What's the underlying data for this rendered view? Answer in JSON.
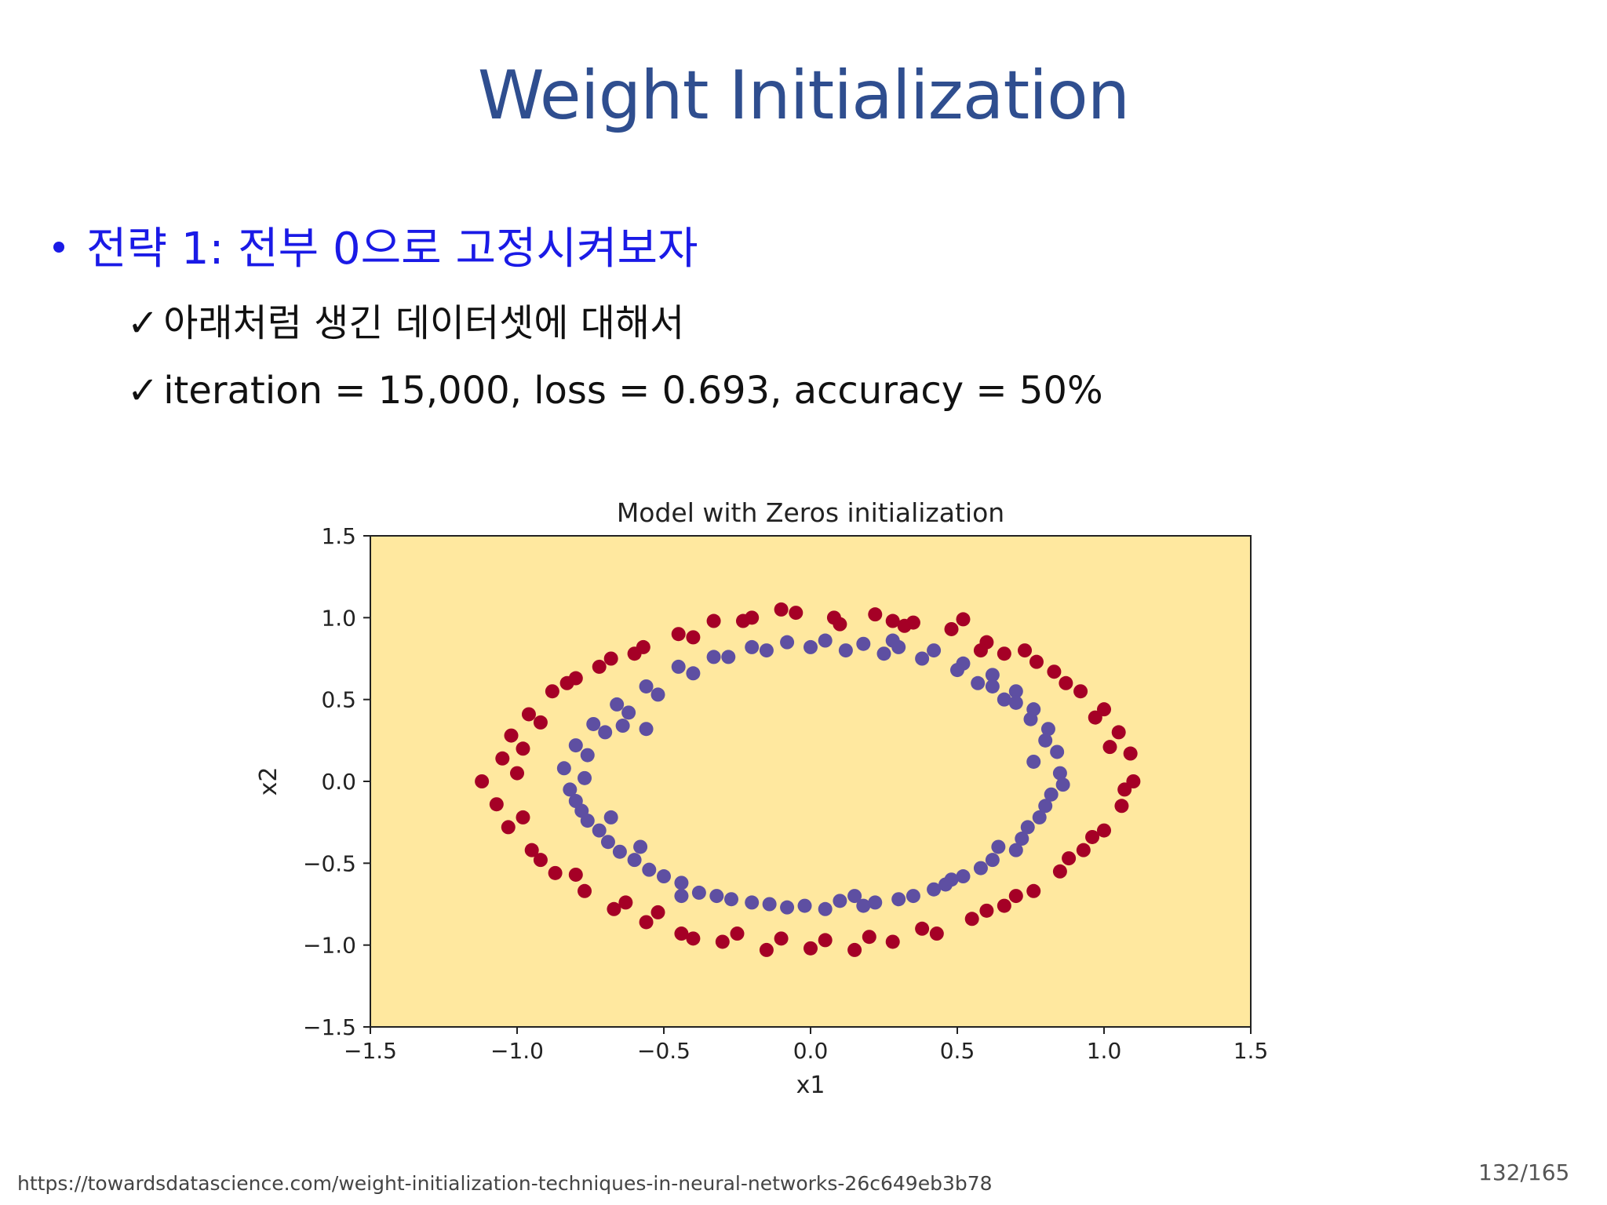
{
  "slide": {
    "title": "Weight Initialization",
    "bullet": "전략 1: 전부 0으로 고정시켜보자",
    "checks": [
      {
        "mark": "✓",
        "text": "아래처럼 생긴 데이터셋에 대해서"
      },
      {
        "mark": "✓",
        "text": "iteration = 15,000, loss = 0.693, accuracy = 50%"
      }
    ],
    "footer_url": "https://towardsdatascience.com/weight-initialization-techniques-in-neural-networks-26c649eb3b78",
    "page_number": "132/165"
  },
  "chart_data": {
    "type": "scatter",
    "title": "Model with Zeros initialization",
    "xlabel": "x1",
    "ylabel": "x2",
    "xlim": [
      -1.5,
      1.5
    ],
    "ylim": [
      -1.5,
      1.5
    ],
    "xticks": [
      -1.5,
      -1.0,
      -0.5,
      0.0,
      0.5,
      1.0,
      1.5
    ],
    "yticks": [
      -1.5,
      -1.0,
      -0.5,
      0.0,
      0.5,
      1.0,
      1.5
    ],
    "xtick_labels": [
      "−1.5",
      "−1.0",
      "−0.5",
      "0.0",
      "0.5",
      "1.0",
      "1.5"
    ],
    "ytick_labels": [
      "−1.5",
      "−1.0",
      "−0.5",
      "0.0",
      "0.5",
      "1.0",
      "1.5"
    ],
    "grid": false,
    "background_color": "#ffe89f",
    "colors": {
      "outer": "#a50026",
      "inner": "#5e4fa2"
    },
    "series": [
      {
        "color": "#a50026",
        "points": [
          [
            -0.05,
            1.03
          ],
          [
            0.08,
            1.0
          ],
          [
            0.22,
            1.02
          ],
          [
            0.35,
            0.97
          ],
          [
            0.52,
            0.99
          ],
          [
            0.6,
            0.85
          ],
          [
            0.73,
            0.8
          ],
          [
            0.83,
            0.67
          ],
          [
            0.92,
            0.55
          ],
          [
            1.0,
            0.44
          ],
          [
            1.05,
            0.3
          ],
          [
            1.09,
            0.17
          ],
          [
            1.1,
            0.0
          ],
          [
            1.06,
            -0.15
          ],
          [
            1.0,
            -0.3
          ],
          [
            0.93,
            -0.42
          ],
          [
            0.85,
            -0.55
          ],
          [
            0.76,
            -0.67
          ],
          [
            0.66,
            -0.76
          ],
          [
            0.55,
            -0.84
          ],
          [
            0.43,
            -0.93
          ],
          [
            0.28,
            -0.98
          ],
          [
            0.15,
            -1.03
          ],
          [
            0.0,
            -1.02
          ],
          [
            -0.15,
            -1.03
          ],
          [
            -0.3,
            -0.98
          ],
          [
            -0.44,
            -0.93
          ],
          [
            -0.56,
            -0.86
          ],
          [
            -0.67,
            -0.78
          ],
          [
            -0.77,
            -0.67
          ],
          [
            -0.87,
            -0.56
          ],
          [
            -0.95,
            -0.42
          ],
          [
            -1.03,
            -0.28
          ],
          [
            -1.07,
            -0.14
          ],
          [
            -1.12,
            0.0
          ],
          [
            -1.05,
            0.14
          ],
          [
            -1.02,
            0.28
          ],
          [
            -0.96,
            0.41
          ],
          [
            -0.88,
            0.55
          ],
          [
            -0.8,
            0.63
          ],
          [
            -0.68,
            0.75
          ],
          [
            -0.57,
            0.82
          ],
          [
            -0.45,
            0.9
          ],
          [
            -0.33,
            0.98
          ],
          [
            -0.2,
            1.0
          ],
          [
            -0.1,
            1.05
          ],
          [
            0.1,
            0.96
          ],
          [
            0.28,
            0.98
          ],
          [
            0.48,
            0.93
          ],
          [
            0.66,
            0.78
          ],
          [
            0.77,
            0.73
          ],
          [
            0.87,
            0.6
          ],
          [
            0.97,
            0.39
          ],
          [
            1.02,
            0.21
          ],
          [
            1.07,
            -0.05
          ],
          [
            0.96,
            -0.34
          ],
          [
            0.88,
            -0.47
          ],
          [
            0.7,
            -0.7
          ],
          [
            0.6,
            -0.79
          ],
          [
            0.38,
            -0.9
          ],
          [
            0.2,
            -0.95
          ],
          [
            0.05,
            -0.97
          ],
          [
            -0.1,
            -0.96
          ],
          [
            -0.25,
            -0.93
          ],
          [
            -0.4,
            -0.96
          ],
          [
            -0.52,
            -0.8
          ],
          [
            -0.63,
            -0.74
          ],
          [
            -0.8,
            -0.57
          ],
          [
            -0.92,
            -0.48
          ],
          [
            -0.98,
            -0.22
          ],
          [
            -1.0,
            0.05
          ],
          [
            -0.98,
            0.2
          ],
          [
            -0.92,
            0.36
          ],
          [
            -0.83,
            0.6
          ],
          [
            -0.72,
            0.7
          ],
          [
            -0.6,
            0.78
          ],
          [
            -0.4,
            0.88
          ],
          [
            -0.23,
            0.98
          ],
          [
            0.32,
            0.95
          ],
          [
            0.58,
            0.8
          ]
        ]
      },
      {
        "color": "#5e4fa2",
        "points": [
          [
            -0.08,
            0.85
          ],
          [
            0.05,
            0.86
          ],
          [
            0.18,
            0.84
          ],
          [
            0.3,
            0.82
          ],
          [
            0.42,
            0.8
          ],
          [
            0.52,
            0.72
          ],
          [
            0.62,
            0.65
          ],
          [
            0.7,
            0.55
          ],
          [
            0.76,
            0.44
          ],
          [
            0.81,
            0.32
          ],
          [
            0.84,
            0.18
          ],
          [
            0.85,
            0.05
          ],
          [
            0.82,
            -0.08
          ],
          [
            0.78,
            -0.22
          ],
          [
            0.72,
            -0.35
          ],
          [
            0.62,
            -0.48
          ],
          [
            0.52,
            -0.58
          ],
          [
            0.42,
            -0.66
          ],
          [
            0.3,
            -0.72
          ],
          [
            0.18,
            -0.76
          ],
          [
            0.05,
            -0.78
          ],
          [
            -0.08,
            -0.77
          ],
          [
            -0.2,
            -0.74
          ],
          [
            -0.32,
            -0.7
          ],
          [
            -0.44,
            -0.62
          ],
          [
            -0.55,
            -0.54
          ],
          [
            -0.65,
            -0.43
          ],
          [
            -0.72,
            -0.3
          ],
          [
            -0.78,
            -0.18
          ],
          [
            -0.82,
            -0.05
          ],
          [
            -0.84,
            0.08
          ],
          [
            -0.8,
            0.22
          ],
          [
            -0.74,
            0.35
          ],
          [
            -0.66,
            0.47
          ],
          [
            -0.56,
            0.58
          ],
          [
            -0.45,
            0.7
          ],
          [
            -0.33,
            0.76
          ],
          [
            -0.2,
            0.82
          ],
          [
            0.12,
            0.8
          ],
          [
            0.25,
            0.78
          ],
          [
            0.38,
            0.75
          ],
          [
            0.57,
            0.6
          ],
          [
            0.66,
            0.5
          ],
          [
            0.75,
            0.38
          ],
          [
            0.8,
            0.25
          ],
          [
            0.86,
            -0.02
          ],
          [
            0.8,
            -0.15
          ],
          [
            0.7,
            -0.42
          ],
          [
            0.58,
            -0.53
          ],
          [
            0.46,
            -0.63
          ],
          [
            0.35,
            -0.7
          ],
          [
            0.22,
            -0.74
          ],
          [
            0.1,
            -0.73
          ],
          [
            -0.02,
            -0.76
          ],
          [
            -0.14,
            -0.75
          ],
          [
            -0.27,
            -0.72
          ],
          [
            -0.38,
            -0.68
          ],
          [
            -0.5,
            -0.58
          ],
          [
            -0.6,
            -0.48
          ],
          [
            -0.69,
            -0.37
          ],
          [
            -0.76,
            -0.24
          ],
          [
            -0.8,
            -0.12
          ],
          [
            -0.77,
            0.02
          ],
          [
            -0.76,
            0.16
          ],
          [
            -0.7,
            0.3
          ],
          [
            -0.62,
            0.42
          ],
          [
            -0.52,
            0.53
          ],
          [
            -0.4,
            0.66
          ],
          [
            -0.28,
            0.76
          ],
          [
            -0.15,
            0.8
          ],
          [
            0.0,
            0.82
          ],
          [
            0.28,
            0.86
          ],
          [
            0.5,
            0.68
          ],
          [
            0.62,
            0.58
          ],
          [
            0.7,
            0.48
          ],
          [
            0.76,
            0.12
          ],
          [
            0.74,
            -0.28
          ],
          [
            0.64,
            -0.4
          ],
          [
            -0.64,
            0.34
          ],
          [
            -0.68,
            -0.22
          ],
          [
            -0.58,
            -0.4
          ],
          [
            -0.44,
            -0.7
          ],
          [
            0.15,
            -0.7
          ],
          [
            -0.56,
            0.32
          ],
          [
            0.48,
            -0.6
          ]
        ]
      }
    ]
  }
}
